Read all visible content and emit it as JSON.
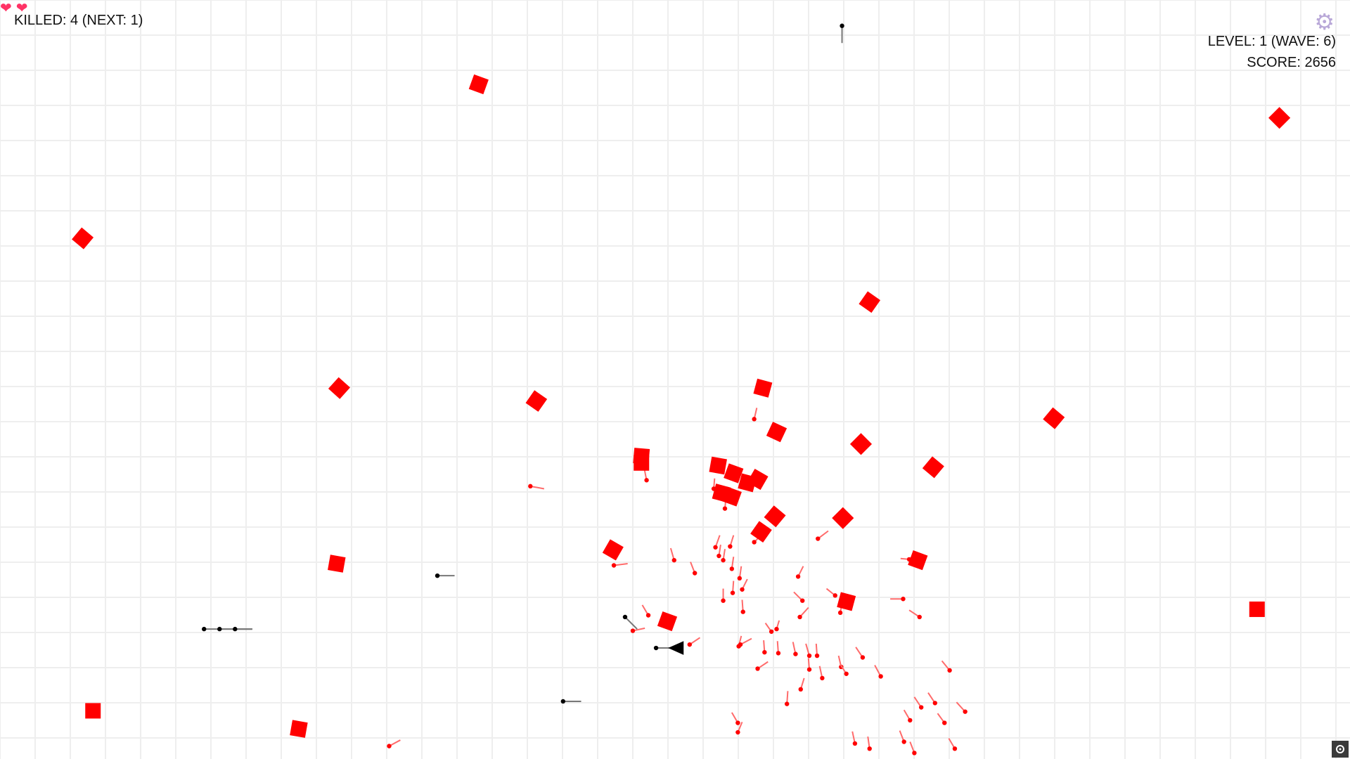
{
  "hud": {
    "killed_label": "KILLED: 4  (NEXT: 1)",
    "lives": 2,
    "life_icon": "heart-icon",
    "level_label": "LEVEL: 1 (WAVE: 6)",
    "score_label": "SCORE: 2656"
  },
  "icons": {
    "settings": "gear-icon",
    "recenter": "target-icon"
  },
  "colors": {
    "background": "#ffffff",
    "grid": "#eeeeee",
    "enemy": "#ff0000",
    "enemy_bullet": "#ff0000",
    "player": "#000000",
    "gear": "#b9a8d8",
    "heart": "#ff3366"
  }
}
